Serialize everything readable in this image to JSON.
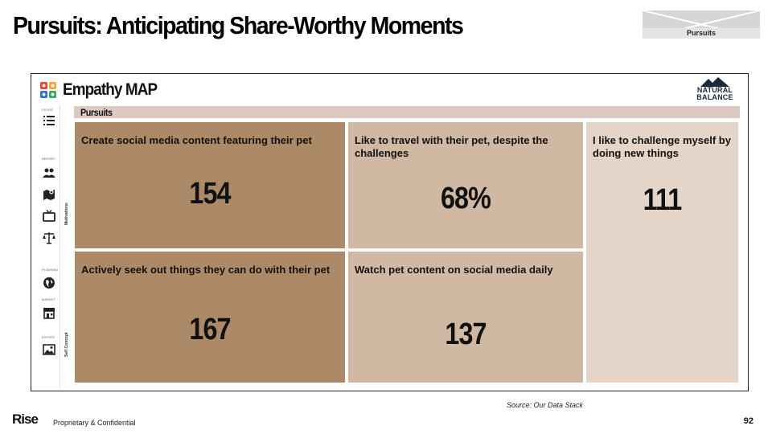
{
  "slide": {
    "title": "Pursuits: Anticipating Share-Worthy Moments",
    "badge_label": "Pursuits",
    "source": "Source: Our Data Stack",
    "footer_brand": "Rise",
    "footer_confidential": "Proprietary & Confidential",
    "page_number": "92"
  },
  "app": {
    "title": "Empathy MAP",
    "brand_line1": "NATURAL",
    "brand_line2": "BALANCE",
    "section": "Pursuits",
    "vertical_labels": {
      "top": "Motivations",
      "bottom": "Self Concept"
    }
  },
  "sidebar": {
    "groups": [
      {
        "label": "FILTER",
        "icons": [
          "list-icon"
        ]
      },
      {
        "label": "REPORT",
        "icons": [
          "people-icon",
          "map-icon",
          "tv-icon",
          "scale-icon"
        ]
      },
      {
        "label": "PLANNING",
        "icons": [
          "globe-icon"
        ]
      },
      {
        "label": "MARKET",
        "icons": [
          "store-icon"
        ]
      },
      {
        "label": "EXPORT",
        "icons": [
          "image-icon"
        ]
      }
    ]
  },
  "tiles": [
    {
      "text": "Create social media content featuring their pet",
      "value": "154",
      "color": "#ad8a67"
    },
    {
      "text": "Like to travel with their pet, despite the challenges",
      "value": "68%",
      "color": "#d0b8a2"
    },
    {
      "text": "I like to challenge myself by doing new things",
      "value": "111",
      "color": "#e4d5c8"
    },
    {
      "text": "Actively seek out things they can do with their pet",
      "value": "167",
      "color": "#ad8a67"
    },
    {
      "text": "Watch pet content on social media daily",
      "value": "137",
      "color": "#d0b8a2"
    }
  ]
}
